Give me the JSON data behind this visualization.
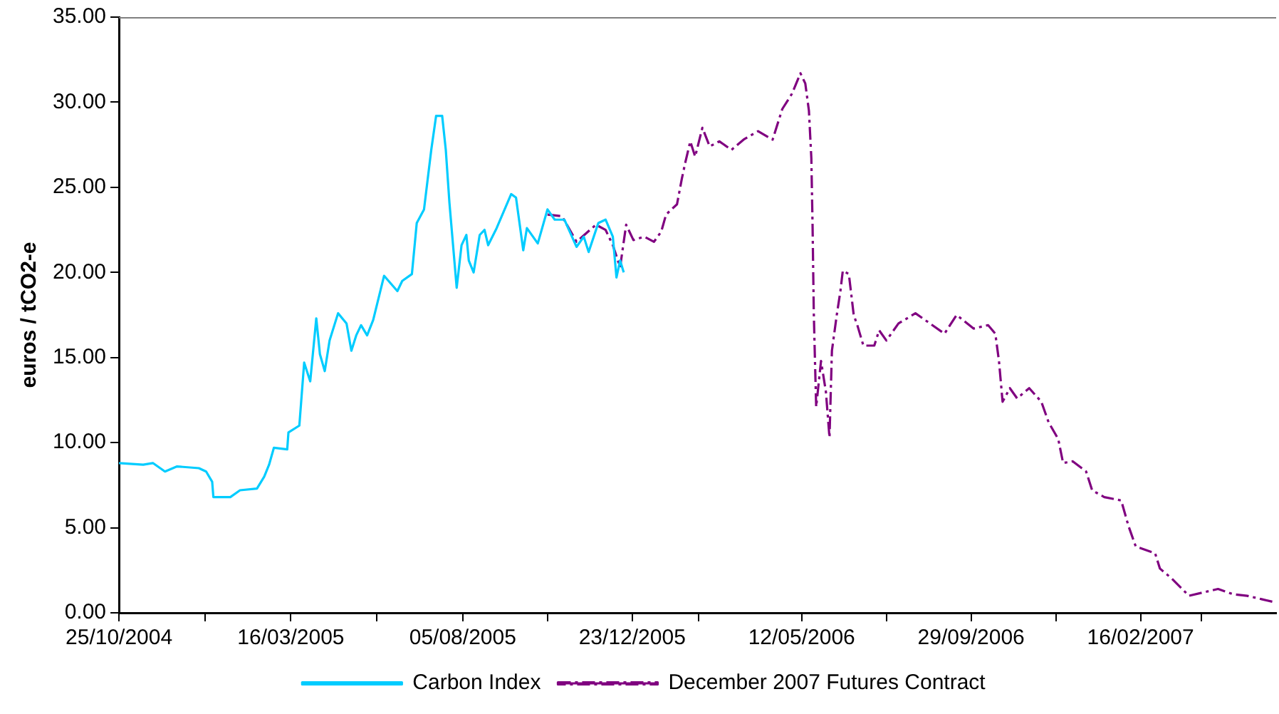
{
  "chart_data": {
    "type": "line",
    "ylabel": "euros / tCO2-e",
    "legend": "bottom",
    "grid": false,
    "marker": "none",
    "xlim": [
      "2004-10-25",
      "2007-06-08"
    ],
    "xticks": [
      {
        "value": "2004-10-25",
        "label": "25/10/2004"
      },
      {
        "value": "2005-01-04",
        "label": null
      },
      {
        "value": "2005-03-16",
        "label": "16/03/2005"
      },
      {
        "value": "2005-05-26",
        "label": null
      },
      {
        "value": "2005-08-05",
        "label": "05/08/2005"
      },
      {
        "value": "2005-10-14",
        "label": null
      },
      {
        "value": "2005-12-23",
        "label": "23/12/2005"
      },
      {
        "value": "2006-02-16",
        "label": null
      },
      {
        "value": "2006-05-12",
        "label": "12/05/2006"
      },
      {
        "value": "2006-07-21",
        "label": null
      },
      {
        "value": "2006-09-29",
        "label": "29/09/2006"
      },
      {
        "value": "2006-12-08",
        "label": null
      },
      {
        "value": "2007-02-16",
        "label": "16/02/2007"
      },
      {
        "value": "2007-04-07",
        "label": null
      }
    ],
    "ylim": [
      0,
      35
    ],
    "yticks": [
      {
        "value": 0,
        "label": "0.00"
      },
      {
        "value": 5,
        "label": "5.00"
      },
      {
        "value": 10,
        "label": "10.00"
      },
      {
        "value": 15,
        "label": "15.00"
      },
      {
        "value": 20,
        "label": "20.00"
      },
      {
        "value": 25,
        "label": "25.00"
      },
      {
        "value": 30,
        "label": "30.00"
      },
      {
        "value": 35,
        "label": "35.00"
      }
    ],
    "series": [
      {
        "name": "Carbon Index",
        "color": "#00ccff",
        "line_style": "solid",
        "x": [
          "2004-10-25",
          "2004-11-14",
          "2004-11-22",
          "2004-12-02",
          "2004-12-12",
          "2004-12-30",
          "2005-01-05",
          "2005-01-10",
          "2005-01-11",
          "2005-01-25",
          "2005-02-02",
          "2005-02-16",
          "2005-02-22",
          "2005-02-26",
          "2005-03-02",
          "2005-03-13",
          "2005-03-14",
          "2005-03-23",
          "2005-03-27",
          "2005-04-01",
          "2005-04-06",
          "2005-04-09",
          "2005-04-13",
          "2005-04-17",
          "2005-04-24",
          "2005-05-01",
          "2005-05-05",
          "2005-05-09",
          "2005-05-13",
          "2005-05-18",
          "2005-05-23",
          "2005-06-01",
          "2005-06-12",
          "2005-06-16",
          "2005-06-24",
          "2005-06-28",
          "2005-07-04",
          "2005-07-10",
          "2005-07-14",
          "2005-07-19",
          "2005-07-22",
          "2005-07-25",
          "2005-07-31",
          "2005-08-04",
          "2005-08-08",
          "2005-08-10",
          "2005-08-14",
          "2005-08-19",
          "2005-08-23",
          "2005-08-26",
          "2005-09-02",
          "2005-09-14",
          "2005-09-18",
          "2005-09-24",
          "2005-09-27",
          "2005-10-06",
          "2005-10-14",
          "2005-10-20",
          "2005-10-28",
          "2005-11-07",
          "2005-11-13",
          "2005-11-17",
          "2005-11-25",
          "2005-12-01",
          "2005-12-07",
          "2005-12-10",
          "2005-12-13",
          "2005-12-16"
        ],
        "values": [
          8.8,
          8.7,
          8.8,
          8.3,
          8.6,
          8.5,
          8.3,
          7.7,
          6.8,
          6.8,
          7.2,
          7.3,
          8,
          8.7,
          9.7,
          9.6,
          10.6,
          11,
          14.7,
          13.6,
          17.3,
          15.2,
          14.2,
          16,
          17.6,
          17,
          15.4,
          16.3,
          16.9,
          16.3,
          17.2,
          19.8,
          18.9,
          19.5,
          19.9,
          22.9,
          23.7,
          27.2,
          29.2,
          29.2,
          27.2,
          24.1,
          19.1,
          21.6,
          22.2,
          20.7,
          20,
          22.2,
          22.5,
          21.6,
          22.6,
          24.6,
          24.4,
          21.3,
          22.6,
          21.7,
          23.7,
          23.1,
          23.1,
          21.5,
          22.1,
          21.2,
          22.9,
          23.1,
          22.1,
          19.7,
          20.7,
          20
        ]
      },
      {
        "name": "December 2007 Futures Contract",
        "color": "#800080",
        "line_style": "dashdot",
        "x": [
          "2005-10-14",
          "2005-10-26",
          "2005-11-07",
          "2005-11-23",
          "2005-12-01",
          "2005-12-07",
          "2005-12-13",
          "2005-12-18",
          "2005-12-24",
          "2006-01-02",
          "2006-01-10",
          "2006-01-16",
          "2006-01-20",
          "2006-01-29",
          "2006-02-02",
          "2006-02-05",
          "2006-02-09",
          "2006-02-13",
          "2006-02-19",
          "2006-02-25",
          "2006-03-05",
          "2006-03-15",
          "2006-03-25",
          "2006-04-06",
          "2006-04-18",
          "2006-04-26",
          "2006-05-04",
          "2006-05-11",
          "2006-05-15",
          "2006-05-18",
          "2006-05-20",
          "2006-05-21",
          "2006-05-22",
          "2006-05-23",
          "2006-05-24",
          "2006-05-28",
          "2006-06-01",
          "2006-06-04",
          "2006-06-06",
          "2006-06-10",
          "2006-06-13",
          "2006-06-15",
          "2006-06-20",
          "2006-06-24",
          "2006-06-27",
          "2006-07-02",
          "2006-07-11",
          "2006-07-15",
          "2006-07-21",
          "2006-07-31",
          "2006-08-14",
          "2006-08-24",
          "2006-09-07",
          "2006-09-17",
          "2006-10-01",
          "2006-10-13",
          "2006-10-19",
          "2006-10-22",
          "2006-10-25",
          "2006-10-31",
          "2006-11-06",
          "2006-11-16",
          "2006-11-26",
          "2006-12-02",
          "2006-12-10",
          "2006-12-14",
          "2006-12-22",
          "2007-01-02",
          "2007-01-07",
          "2007-01-17",
          "2007-01-31",
          "2007-02-06",
          "2007-02-12",
          "2007-02-28",
          "2007-03-04",
          "2007-03-14",
          "2007-03-28",
          "2007-04-09",
          "2007-04-21",
          "2007-05-03",
          "2007-05-15",
          "2007-05-27",
          "2007-06-08"
        ],
        "values": [
          23.4,
          23.3,
          21.8,
          22.8,
          22.5,
          21.6,
          20.3,
          22.8,
          21.9,
          22.1,
          21.8,
          22.4,
          23.4,
          24,
          25.5,
          26.5,
          27.7,
          26.8,
          28.5,
          27.4,
          27.7,
          27.2,
          27.8,
          28.3,
          27.8,
          29.6,
          30.5,
          31.7,
          31.1,
          29.5,
          26.7,
          22.8,
          17.7,
          14.8,
          12.1,
          14.8,
          13,
          10.3,
          15.4,
          17.5,
          18.9,
          20.1,
          19.9,
          17.5,
          16.9,
          15.7,
          15.7,
          16.6,
          16,
          17,
          17.6,
          17.1,
          16.4,
          17.5,
          16.7,
          16.9,
          16.4,
          14.8,
          12.4,
          13.2,
          12.6,
          13.2,
          12.4,
          11.2,
          10.2,
          8.8,
          8.9,
          8.3,
          7.2,
          6.8,
          6.6,
          5.1,
          3.9,
          3.5,
          2.6,
          2,
          1,
          1.2,
          1.4,
          1.1,
          1,
          0.8,
          0.6
        ]
      }
    ]
  }
}
